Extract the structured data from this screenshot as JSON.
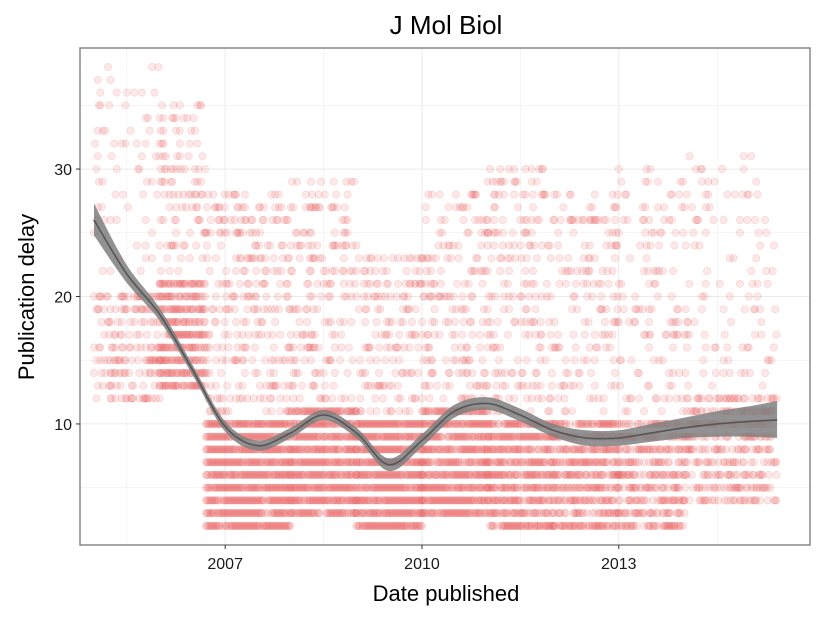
{
  "chart_data": {
    "type": "scatter",
    "title": "J Mol Biol",
    "xlabel": "Date published",
    "ylabel": "Publication delay",
    "x_ticks": [
      "2007",
      "2010",
      "2013"
    ],
    "y_ticks": [
      10,
      20,
      30
    ],
    "xlim": [
      "2004-10-15",
      "2015-12-01"
    ],
    "ylim": [
      0.5,
      39.5
    ],
    "grid": true,
    "legend": "none",
    "colors": {
      "points": "#e31a1c",
      "smooth_band": "#7f7f7f",
      "smooth_line": "#555555",
      "grid": "#ebebeb",
      "panel_border": "#7f7f7f"
    },
    "point_clusters": [
      {
        "from": "2005-01-01",
        "to": "2006-01-01",
        "delay_min": 12,
        "delay_max": 38,
        "density": 0.9
      },
      {
        "from": "2006-01-01",
        "to": "2006-09-15",
        "delay_min": 13,
        "delay_max": 35,
        "density": 2.4
      },
      {
        "from": "2006-09-15",
        "to": "2008-01-01",
        "delay_min": 2,
        "delay_max": 28,
        "density": 3.0
      },
      {
        "from": "2008-01-01",
        "to": "2009-01-01",
        "delay_min": 3,
        "delay_max": 29,
        "density": 2.6
      },
      {
        "from": "2009-01-01",
        "to": "2010-01-01",
        "delay_min": 2,
        "delay_max": 23,
        "density": 2.8
      },
      {
        "from": "2010-01-01",
        "to": "2011-01-01",
        "delay_min": 3,
        "delay_max": 28,
        "density": 2.6
      },
      {
        "from": "2011-01-01",
        "to": "2012-01-01",
        "delay_min": 2,
        "delay_max": 30,
        "density": 2.3
      },
      {
        "from": "2012-01-01",
        "to": "2013-01-01",
        "delay_min": 2,
        "delay_max": 28,
        "density": 2.0
      },
      {
        "from": "2013-01-01",
        "to": "2014-01-01",
        "delay_min": 2,
        "delay_max": 30,
        "density": 1.7
      },
      {
        "from": "2014-01-01",
        "to": "2015-06-01",
        "delay_min": 4,
        "delay_max": 31,
        "density": 1.2
      }
    ],
    "smooth": [
      {
        "x": "2005-01-01",
        "y": 26.0,
        "lo": 24.8,
        "hi": 27.3
      },
      {
        "x": "2005-07-01",
        "y": 21.8,
        "lo": 21.1,
        "hi": 22.5
      },
      {
        "x": "2006-01-01",
        "y": 18.6,
        "lo": 18.1,
        "hi": 19.1
      },
      {
        "x": "2006-07-01",
        "y": 14.3,
        "lo": 13.9,
        "hi": 14.7
      },
      {
        "x": "2007-01-01",
        "y": 9.8,
        "lo": 9.4,
        "hi": 10.2
      },
      {
        "x": "2007-07-01",
        "y": 8.3,
        "lo": 7.9,
        "hi": 8.7
      },
      {
        "x": "2008-01-01",
        "y": 9.3,
        "lo": 8.9,
        "hi": 9.7
      },
      {
        "x": "2008-07-01",
        "y": 10.7,
        "lo": 10.3,
        "hi": 11.1
      },
      {
        "x": "2009-01-01",
        "y": 9.3,
        "lo": 8.9,
        "hi": 9.7
      },
      {
        "x": "2009-07-01",
        "y": 6.8,
        "lo": 6.3,
        "hi": 7.3
      },
      {
        "x": "2010-01-01",
        "y": 8.7,
        "lo": 8.2,
        "hi": 9.2
      },
      {
        "x": "2010-07-01",
        "y": 11.0,
        "lo": 10.5,
        "hi": 11.5
      },
      {
        "x": "2011-01-01",
        "y": 11.6,
        "lo": 11.1,
        "hi": 12.1
      },
      {
        "x": "2011-07-01",
        "y": 10.7,
        "lo": 10.2,
        "hi": 11.2
      },
      {
        "x": "2012-01-01",
        "y": 9.5,
        "lo": 9.0,
        "hi": 10.0
      },
      {
        "x": "2012-07-01",
        "y": 8.9,
        "lo": 8.3,
        "hi": 9.5
      },
      {
        "x": "2013-01-01",
        "y": 8.9,
        "lo": 8.3,
        "hi": 9.5
      },
      {
        "x": "2013-07-01",
        "y": 9.3,
        "lo": 8.6,
        "hi": 10.0
      },
      {
        "x": "2014-01-01",
        "y": 9.7,
        "lo": 8.9,
        "hi": 10.5
      },
      {
        "x": "2014-07-01",
        "y": 10.0,
        "lo": 9.0,
        "hi": 11.0
      },
      {
        "x": "2015-01-01",
        "y": 10.2,
        "lo": 9.0,
        "hi": 11.4
      },
      {
        "x": "2015-06-01",
        "y": 10.3,
        "lo": 8.9,
        "hi": 11.8
      }
    ]
  }
}
